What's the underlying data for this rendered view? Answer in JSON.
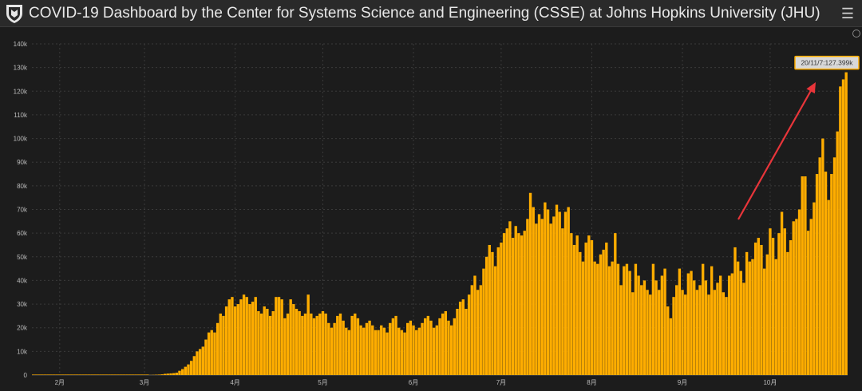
{
  "window": {
    "title": "COVID-19 Dashboard by the Center for Systems Science and Engineering (CSSE) at Johns Hopkins University (JHU)",
    "menu_icon": "hamburger-menu-icon",
    "logo_icon": "jhu-shield-icon"
  },
  "colors": {
    "bar": "#ffad00",
    "background": "#1c1c1c",
    "grid": "#3a3a3a",
    "tooltip_bg": "#d8d8d8",
    "tooltip_border": "#ffad00",
    "arrow": "#e8353a"
  },
  "tooltip": {
    "text": "20/11/7:127.399k"
  },
  "chart_data": {
    "type": "bar",
    "title": "",
    "xlabel": "",
    "ylabel": "",
    "ylim": [
      0,
      140000
    ],
    "grid": true,
    "y_ticks": [
      "0",
      "10k",
      "20k",
      "30k",
      "40k",
      "50k",
      "60k",
      "70k",
      "80k",
      "90k",
      "100k",
      "110k",
      "120k",
      "130k",
      "140k"
    ],
    "x_ticks": [
      {
        "label": "2月",
        "index": 9
      },
      {
        "label": "3月",
        "index": 38
      },
      {
        "label": "4月",
        "index": 69
      },
      {
        "label": "5月",
        "index": 99
      },
      {
        "label": "6月",
        "index": 130
      },
      {
        "label": "7月",
        "index": 160
      },
      {
        "label": "8月",
        "index": 191
      },
      {
        "label": "9月",
        "index": 222
      },
      {
        "label": "10月",
        "index": 252
      }
    ],
    "series": [
      {
        "values": [
          0,
          0,
          0,
          0,
          0,
          0,
          0,
          0,
          0,
          0,
          0,
          0,
          0,
          0,
          0,
          0,
          0,
          0,
          0,
          0,
          0,
          0,
          0,
          0,
          0,
          0,
          0,
          0,
          0,
          0,
          0,
          0,
          0,
          0,
          0,
          0,
          0,
          0,
          0,
          0,
          50,
          100,
          150,
          200,
          300,
          500,
          600,
          700,
          800,
          1000,
          1800,
          2500,
          3500,
          4500,
          6000,
          8000,
          10000,
          11000,
          12000,
          15000,
          18000,
          19000,
          18000,
          22000,
          26000,
          25000,
          29000,
          32000,
          33000,
          29000,
          30000,
          32000,
          34000,
          33000,
          30000,
          31000,
          33000,
          27000,
          26000,
          29000,
          28000,
          25000,
          27000,
          33000,
          33000,
          32000,
          24000,
          26000,
          32000,
          30000,
          28000,
          27000,
          25000,
          26000,
          34000,
          26000,
          24000,
          25000,
          26000,
          27000,
          26000,
          22000,
          20000,
          22000,
          25000,
          26000,
          23000,
          20000,
          19000,
          25000,
          26000,
          24000,
          21000,
          20000,
          22000,
          23000,
          21000,
          19000,
          19000,
          21000,
          20000,
          18000,
          22000,
          24000,
          25000,
          20000,
          19000,
          18000,
          22000,
          23000,
          21000,
          19000,
          20000,
          22000,
          24000,
          25000,
          23000,
          20000,
          21000,
          24000,
          26000,
          27000,
          23000,
          21000,
          24000,
          28000,
          31000,
          32000,
          28000,
          34000,
          38000,
          42000,
          36000,
          38000,
          45000,
          50000,
          55000,
          52000,
          46000,
          54000,
          56000,
          60000,
          62000,
          65000,
          58000,
          63000,
          60000,
          59000,
          61000,
          66000,
          77000,
          71000,
          64000,
          68000,
          66000,
          73000,
          70000,
          64000,
          67000,
          72000,
          69000,
          62000,
          69000,
          71000,
          60000,
          55000,
          59000,
          52000,
          48000,
          56000,
          59000,
          57000,
          48000,
          47000,
          51000,
          53000,
          56000,
          46000,
          48000,
          60000,
          47000,
          38000,
          46000,
          47000,
          44000,
          35000,
          47000,
          42000,
          38000,
          40000,
          36000,
          34000,
          47000,
          40000,
          36000,
          42000,
          45000,
          29000,
          24000,
          33000,
          38000,
          45000,
          36000,
          34000,
          43000,
          44000,
          40000,
          36000,
          38000,
          47000,
          40000,
          34000,
          46000,
          36000,
          39000,
          42000,
          35000,
          33000,
          42000,
          43000,
          54000,
          48000,
          44000,
          39000,
          52000,
          48000,
          49000,
          56000,
          58000,
          55000,
          45000,
          51000,
          62000,
          58000,
          49000,
          60000,
          69000,
          62000,
          52000,
          57000,
          65000,
          66000,
          70000,
          84000,
          84000,
          61000,
          66000,
          73000,
          85000,
          92000,
          100000,
          86000,
          74000,
          85000,
          92000,
          103000,
          122000,
          125000,
          128000
        ]
      }
    ]
  }
}
